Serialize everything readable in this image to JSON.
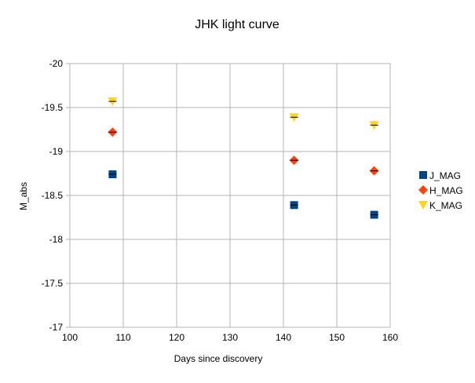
{
  "chart_data": {
    "type": "scatter",
    "title": "JHK light curve",
    "xlabel": "Days since discovery",
    "ylabel": "M_abs",
    "xlim": [
      100,
      160
    ],
    "ylim": [
      -17,
      -20
    ],
    "y_reversed": true,
    "x_ticks": [
      "100",
      "110",
      "120",
      "130",
      "140",
      "150",
      "160"
    ],
    "y_ticks": [
      "-20",
      "-19.5",
      "-19",
      "-18.5",
      "-18",
      "-17.5",
      "-17"
    ],
    "grid": true,
    "legend_position": "right",
    "series": [
      {
        "name": "J_MAG",
        "marker": "square",
        "color": "#004586",
        "x": [
          108,
          142,
          157
        ],
        "y": [
          -18.74,
          -18.39,
          -18.28
        ]
      },
      {
        "name": "H_MAG",
        "marker": "diamond",
        "color": "#ff420e",
        "x": [
          108,
          142,
          157
        ],
        "y": [
          -19.22,
          -18.9,
          -18.78
        ]
      },
      {
        "name": "K_MAG",
        "marker": "triangle-down",
        "color": "#ffd320",
        "x": [
          108,
          142,
          157
        ],
        "y": [
          -19.57,
          -19.39,
          -19.3
        ]
      }
    ]
  }
}
